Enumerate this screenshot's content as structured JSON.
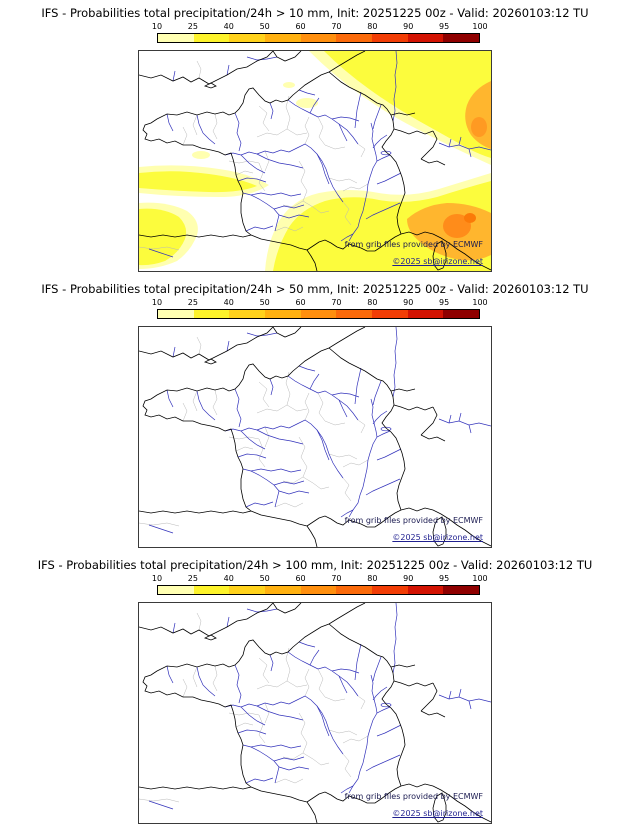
{
  "colorbar": {
    "labels": [
      "10",
      "25",
      "40",
      "50",
      "60",
      "70",
      "80",
      "90",
      "95",
      "100"
    ],
    "colors": [
      "#ffffb2",
      "#fdf32b",
      "#ffd21c",
      "#ffb111",
      "#ff8f0e",
      "#fb6a0a",
      "#f23d05",
      "#d31302",
      "#8f0000"
    ]
  },
  "panels": [
    {
      "title": "IFS - Probabilities total precipitation/24h > 10 mm, Init: 20251225 00z - Valid: 20260103:12 TU",
      "attribution": "from grib files provided by ECMWF",
      "copyright": "©2025 sb@irizone.net"
    },
    {
      "title": "IFS - Probabilities total precipitation/24h > 50 mm, Init: 20251225 00z - Valid: 20260103:12 TU",
      "attribution": "from grib files provided by ECMWF",
      "copyright": "©2025 sb@irizone.net"
    },
    {
      "title": "IFS - Probabilities total precipitation/24h > 100 mm, Init: 20251225 00z - Valid: 20260103:12 TU",
      "attribution": "from grib files provided by ECMWF",
      "copyright": "©2025 sb@irizone.net"
    }
  ]
}
